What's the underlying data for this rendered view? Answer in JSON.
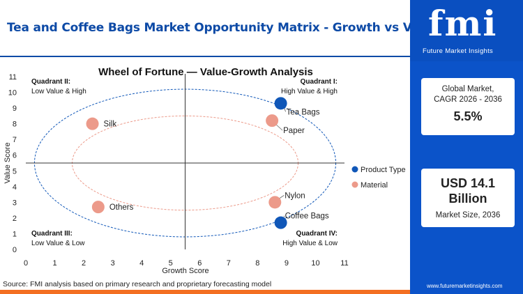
{
  "header": {
    "title": "Tea and Coffee Bags Market Opportunity Matrix - Growth vs Value"
  },
  "logo": {
    "letters": "fmi",
    "subtitle": "Future Market Insights",
    "website": "www.futuremarketinsights.com"
  },
  "cards": {
    "cagr": {
      "label1": "Global Market,",
      "label2": "CAGR 2026 - 2036",
      "value": "5.5%"
    },
    "size": {
      "value1": "USD 14.1",
      "value2": "Billion",
      "label": "Market Size, 2036"
    }
  },
  "footer": {
    "source": "Source: FMI analysis based on primary research and proprietary forecasting model"
  },
  "colors": {
    "product_type": "#1057b8",
    "material": "#ec9a8a",
    "axis_blue": "#0d4aa6",
    "accent": "#f36f21"
  },
  "chart_data": {
    "type": "scatter",
    "title": "Wheel of Fortune — Value-Growth Analysis",
    "xlabel": "Growth Score",
    "ylabel": "Value Score",
    "xlim": [
      0,
      11
    ],
    "ylim": [
      0,
      11
    ],
    "xticks": [
      "0",
      "1",
      "2",
      "3",
      "4",
      "5",
      "6",
      "7",
      "8",
      "9",
      "10",
      "11"
    ],
    "yticks": [
      "0",
      "1",
      "2",
      "3",
      "4",
      "5",
      "6",
      "7",
      "8",
      "9",
      "10",
      "11"
    ],
    "divider": {
      "x": 5.5,
      "y": 5.5
    },
    "quadrants": [
      {
        "id": "q2",
        "title": "Quadrant II:",
        "subtitle": "Low Value & High"
      },
      {
        "id": "q1",
        "title": "Quadrant I:",
        "subtitle": "High Value & High"
      },
      {
        "id": "q3",
        "title": "Quadrant III:",
        "subtitle": "Low Value & Low"
      },
      {
        "id": "q4",
        "title": "Quadrant IV:",
        "subtitle": "High Value & Low"
      }
    ],
    "legend": [
      {
        "name": "Product Type"
      },
      {
        "name": "Material"
      }
    ],
    "legend_position": "right",
    "series": [
      {
        "name": "Product Type",
        "points": [
          {
            "label": "Tea Bags",
            "x": 8.8,
            "y": 9.3
          },
          {
            "label": "Coffee Bags",
            "x": 8.8,
            "y": 1.7
          }
        ]
      },
      {
        "name": "Material",
        "points": [
          {
            "label": "Silk",
            "x": 2.3,
            "y": 8.0
          },
          {
            "label": "Paper",
            "x": 8.5,
            "y": 8.2
          },
          {
            "label": "Nylon",
            "x": 8.6,
            "y": 3.0
          },
          {
            "label": "Others",
            "x": 2.5,
            "y": 2.7
          }
        ]
      }
    ],
    "grid": false
  }
}
